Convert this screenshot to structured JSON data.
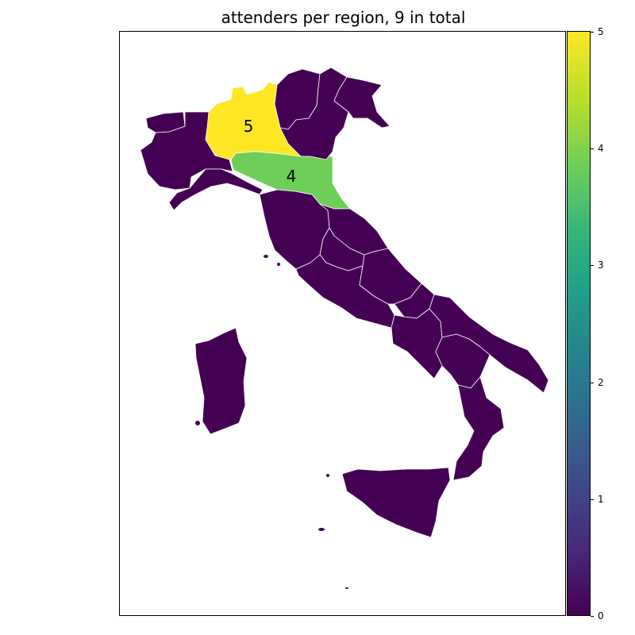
{
  "title": "attenders per region, 9 in total",
  "colormap": [
    "#440154",
    "#482878",
    "#3e4989",
    "#31688e",
    "#26828e",
    "#1f9e89",
    "#35b779",
    "#6ece58",
    "#b5de2b",
    "#fde725"
  ],
  "border_color": "#ffffff",
  "colorbar": {
    "min": 0,
    "max": 5,
    "ticks": [
      "0",
      "1",
      "2",
      "3",
      "4",
      "5"
    ]
  },
  "regions": [
    {
      "name": "Lombardia",
      "value": 5,
      "label": "5"
    },
    {
      "name": "Emilia-Romagna",
      "value": 4,
      "label": "4"
    },
    {
      "name": "Piemonte",
      "value": 0
    },
    {
      "name": "Valle d'Aosta",
      "value": 0
    },
    {
      "name": "Liguria",
      "value": 0
    },
    {
      "name": "Trentino-Alto Adige",
      "value": 0
    },
    {
      "name": "Veneto",
      "value": 0
    },
    {
      "name": "Friuli-Venezia Giulia",
      "value": 0
    },
    {
      "name": "Toscana",
      "value": 0
    },
    {
      "name": "Umbria",
      "value": 0
    },
    {
      "name": "Marche",
      "value": 0
    },
    {
      "name": "Lazio",
      "value": 0
    },
    {
      "name": "Abruzzo",
      "value": 0
    },
    {
      "name": "Molise",
      "value": 0
    },
    {
      "name": "Campania",
      "value": 0
    },
    {
      "name": "Puglia",
      "value": 0
    },
    {
      "name": "Basilicata",
      "value": 0
    },
    {
      "name": "Calabria",
      "value": 0
    },
    {
      "name": "Sicilia",
      "value": 0
    },
    {
      "name": "Sardegna",
      "value": 0
    }
  ]
}
